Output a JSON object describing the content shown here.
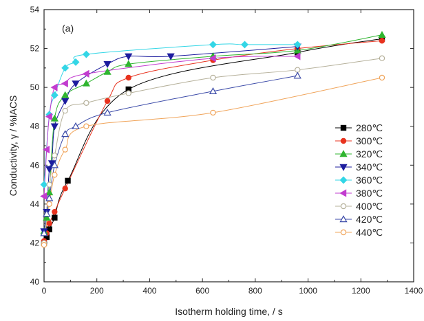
{
  "chart_data": {
    "type": "scatter",
    "panel_label": "(a)",
    "xlabel": "Isotherm holding time, / s",
    "ylabel": "Conductivity, γ / %IACS",
    "xlim": [
      0,
      1400
    ],
    "ylim": [
      40,
      54
    ],
    "xticks": [
      0,
      200,
      400,
      600,
      800,
      1000,
      1200,
      1400
    ],
    "yticks": [
      40,
      42,
      44,
      46,
      48,
      50,
      52,
      54
    ],
    "legend_position": "right",
    "series": [
      {
        "name": "280℃",
        "marker": "square",
        "fill": true,
        "color": "#000000",
        "x": [
          0,
          10,
          20,
          40,
          90,
          320,
          960,
          1280
        ],
        "y": [
          42.0,
          42.3,
          42.7,
          43.3,
          45.2,
          49.9,
          51.8,
          52.5
        ]
      },
      {
        "name": "300℃",
        "marker": "circle",
        "fill": true,
        "color": "#e8321e",
        "x": [
          0,
          10,
          20,
          40,
          80,
          240,
          320,
          640,
          960,
          1280
        ],
        "y": [
          42.1,
          42.5,
          43.0,
          43.6,
          44.8,
          49.3,
          50.5,
          51.4,
          52.0,
          52.4
        ]
      },
      {
        "name": "320℃",
        "marker": "triangle-up",
        "fill": true,
        "color": "#2fb52f",
        "x": [
          0,
          10,
          20,
          40,
          80,
          160,
          240,
          320,
          640,
          960,
          1280
        ],
        "y": [
          42.6,
          43.3,
          44.6,
          48.4,
          49.6,
          50.2,
          50.8,
          51.2,
          51.6,
          51.9,
          52.7
        ]
      },
      {
        "name": "340℃",
        "marker": "triangle-down",
        "fill": true,
        "color": "#1c1c9e",
        "x": [
          0,
          10,
          20,
          30,
          40,
          80,
          120,
          240,
          320,
          480,
          960
        ],
        "y": [
          42.6,
          43.6,
          45.8,
          46.1,
          48.0,
          49.3,
          50.2,
          51.2,
          51.6,
          51.6,
          52.1
        ]
      },
      {
        "name": "360℃",
        "marker": "diamond",
        "fill": true,
        "color": "#33d6e6",
        "x": [
          0,
          20,
          40,
          80,
          120,
          160,
          640,
          760,
          960
        ],
        "y": [
          45.0,
          48.6,
          49.6,
          51.0,
          51.3,
          51.7,
          52.2,
          52.2,
          52.2
        ]
      },
      {
        "name": "380℃",
        "marker": "triangle-left",
        "fill": true,
        "color": "#c23ccf",
        "x": [
          0,
          10,
          20,
          40,
          80,
          160,
          640,
          960
        ],
        "y": [
          44.4,
          46.8,
          48.5,
          50.0,
          50.2,
          50.7,
          51.5,
          51.6
        ]
      },
      {
        "name": "400℃",
        "marker": "circle",
        "fill": false,
        "color": "#b5b09a",
        "x": [
          0,
          20,
          40,
          80,
          160,
          320,
          640,
          960,
          1280
        ],
        "y": [
          42.0,
          45.0,
          46.5,
          48.8,
          49.2,
          49.7,
          50.5,
          50.9,
          51.5
        ]
      },
      {
        "name": "420℃",
        "marker": "triangle-up",
        "fill": false,
        "color": "#3b4aa8",
        "x": [
          0,
          10,
          20,
          40,
          80,
          120,
          240,
          640,
          960
        ],
        "y": [
          42.5,
          43.5,
          44.3,
          46.0,
          47.6,
          48.0,
          48.7,
          49.8,
          50.6
        ]
      },
      {
        "name": "440℃",
        "marker": "circle",
        "fill": false,
        "color": "#f0a45a",
        "x": [
          0,
          20,
          40,
          80,
          160,
          640,
          1280
        ],
        "y": [
          41.9,
          44.0,
          45.5,
          46.8,
          48.0,
          48.7,
          50.5
        ]
      }
    ]
  }
}
